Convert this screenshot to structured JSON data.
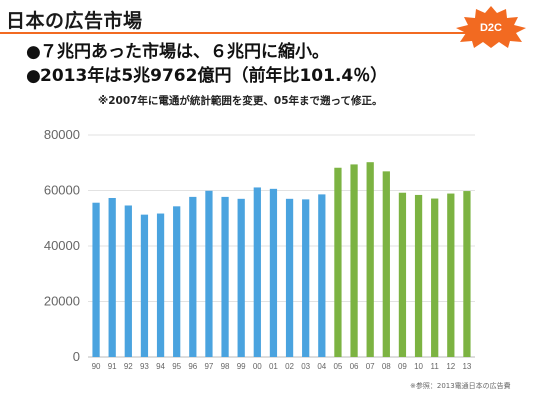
{
  "slide": {
    "title": "日本の広告市場",
    "logo_text": "D2C",
    "bullets": [
      {
        "marker": "●",
        "text": "７兆円あった市場は、６兆円に縮小。"
      },
      {
        "marker": "●",
        "text": "2013年は5兆9762億円（前年比101.4％）"
      }
    ],
    "note": "※2007年に電通が統計範囲を変更、05年まで遡って修正。",
    "source": "※参照：2013電通日本の広告費",
    "accent_color": "#f26a21"
  },
  "chart_data": {
    "type": "bar",
    "title": "",
    "xlabel": "",
    "ylabel": "",
    "ylim": [
      0,
      80000
    ],
    "yticks": [
      "0",
      "20000",
      "40000",
      "60000",
      "80000"
    ],
    "grid": true,
    "categories": [
      "90",
      "91",
      "92",
      "93",
      "94",
      "95",
      "96",
      "97",
      "98",
      "99",
      "00",
      "01",
      "02",
      "03",
      "04",
      "05",
      "06",
      "07",
      "08",
      "09",
      "10",
      "11",
      "12",
      "13"
    ],
    "values": [
      55600,
      57300,
      54600,
      51300,
      51700,
      54300,
      57700,
      59900,
      57700,
      57000,
      61100,
      60600,
      57000,
      56800,
      58600,
      68200,
      69400,
      70200,
      66900,
      59200,
      58400,
      57100,
      58900,
      59800
    ],
    "bar_colors": [
      "#4aa3df",
      "#4aa3df",
      "#4aa3df",
      "#4aa3df",
      "#4aa3df",
      "#4aa3df",
      "#4aa3df",
      "#4aa3df",
      "#4aa3df",
      "#4aa3df",
      "#4aa3df",
      "#4aa3df",
      "#4aa3df",
      "#4aa3df",
      "#4aa3df",
      "#7cb342",
      "#7cb342",
      "#7cb342",
      "#7cb342",
      "#7cb342",
      "#7cb342",
      "#7cb342",
      "#7cb342",
      "#7cb342"
    ]
  }
}
